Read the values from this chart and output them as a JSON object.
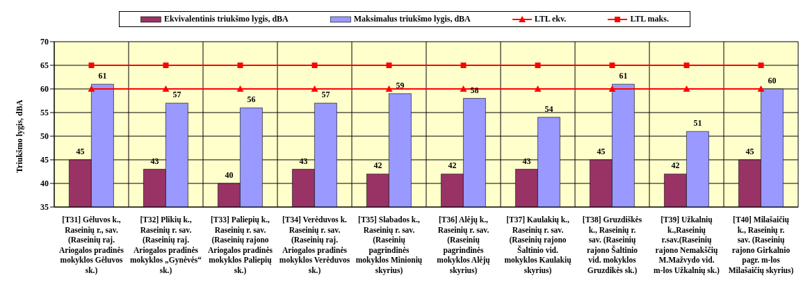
{
  "chart_data": {
    "type": "bar",
    "ylabel": "Triukšmo lygis, dBA",
    "categories": [
      "[T31] Gėluvos k., Raseinių r., sav. (Raseinių raj. Ariogalos pradinės mokyklos Gėluvos sk.)",
      "[T32] Plikių k., Raseinių r. sav. (Raseinių raj. Ariogalos pradinės mokyklos „Gynėvės“ sk.)",
      "[T33] Paliepių k., Raseinių r. sav. (Raseinių rajono Ariogalos pradinės mokyklos Paliepių sk.)",
      "[T34] Verėduvos k. Raseinių r. sav. (Raseinių raj. Ariogalos pradinės mokyklos Verėduvos sk.)",
      "[T35] Slabados k., Raseinių r. sav. (Raseinių pagrindinės mokyklos Minionių skyrius)",
      "[T36] Alėjų k., Raseinių r. sav. (Raseinių pagrindinės mokyklos Alėjų skyrius)",
      "[T37] Kaulakių k., Raseinių r. sav. (Raseinių rajono Šaltinio vid. mokyklos Kaulakių skyrius)",
      "[T38] Gruzdiškės k., Raseinių r. sav. (Raseinių rajono Šaltinio vid. mokyklos Gruzdikės sk.)",
      "[T39] Užkalnių k.,Raseinių r.sav.(Raseinių rajono Nemakščių M.Mažvydo vid. m-los Užkalnių sk.)",
      "[T40] Milašaičių k., Raseinių r. sav. (Raseinių rajono Girkalnio pagr. m-los Milašaičių skyrius)"
    ],
    "series": [
      {
        "name": "Ekvivalentinis triukšmo lygis, dBA",
        "color": "#993366",
        "values": [
          45,
          43,
          40,
          43,
          42,
          42,
          43,
          45,
          42,
          45
        ],
        "value_labels": [
          "45",
          "43",
          "40",
          "43",
          "42",
          "42",
          "43",
          "45",
          "42",
          "45"
        ]
      },
      {
        "name": "Maksimalus triukšmo lygis, dBA",
        "color": "#9999ff",
        "values": [
          61,
          57,
          56,
          57,
          59,
          58,
          54,
          61,
          51,
          60
        ],
        "value_labels": [
          "61",
          "57",
          "56",
          "57",
          "59",
          "58",
          "54",
          "61",
          "51",
          "60"
        ]
      },
      {
        "name": "LTL ekv.",
        "type": "line",
        "color": "#ff0000",
        "marker": "triangle",
        "values": [
          60,
          60,
          60,
          60,
          60,
          60,
          60,
          60,
          60,
          60
        ]
      },
      {
        "name": "LTL maks.",
        "type": "line",
        "color": "#ff0000",
        "marker": "square",
        "values": [
          65,
          65,
          65,
          65,
          65,
          65,
          65,
          65,
          65,
          65
        ]
      }
    ],
    "ylim": [
      35,
      70
    ],
    "yticks": [
      35,
      40,
      45,
      50,
      55,
      60,
      65,
      70
    ],
    "grid": true,
    "legend": "top"
  }
}
